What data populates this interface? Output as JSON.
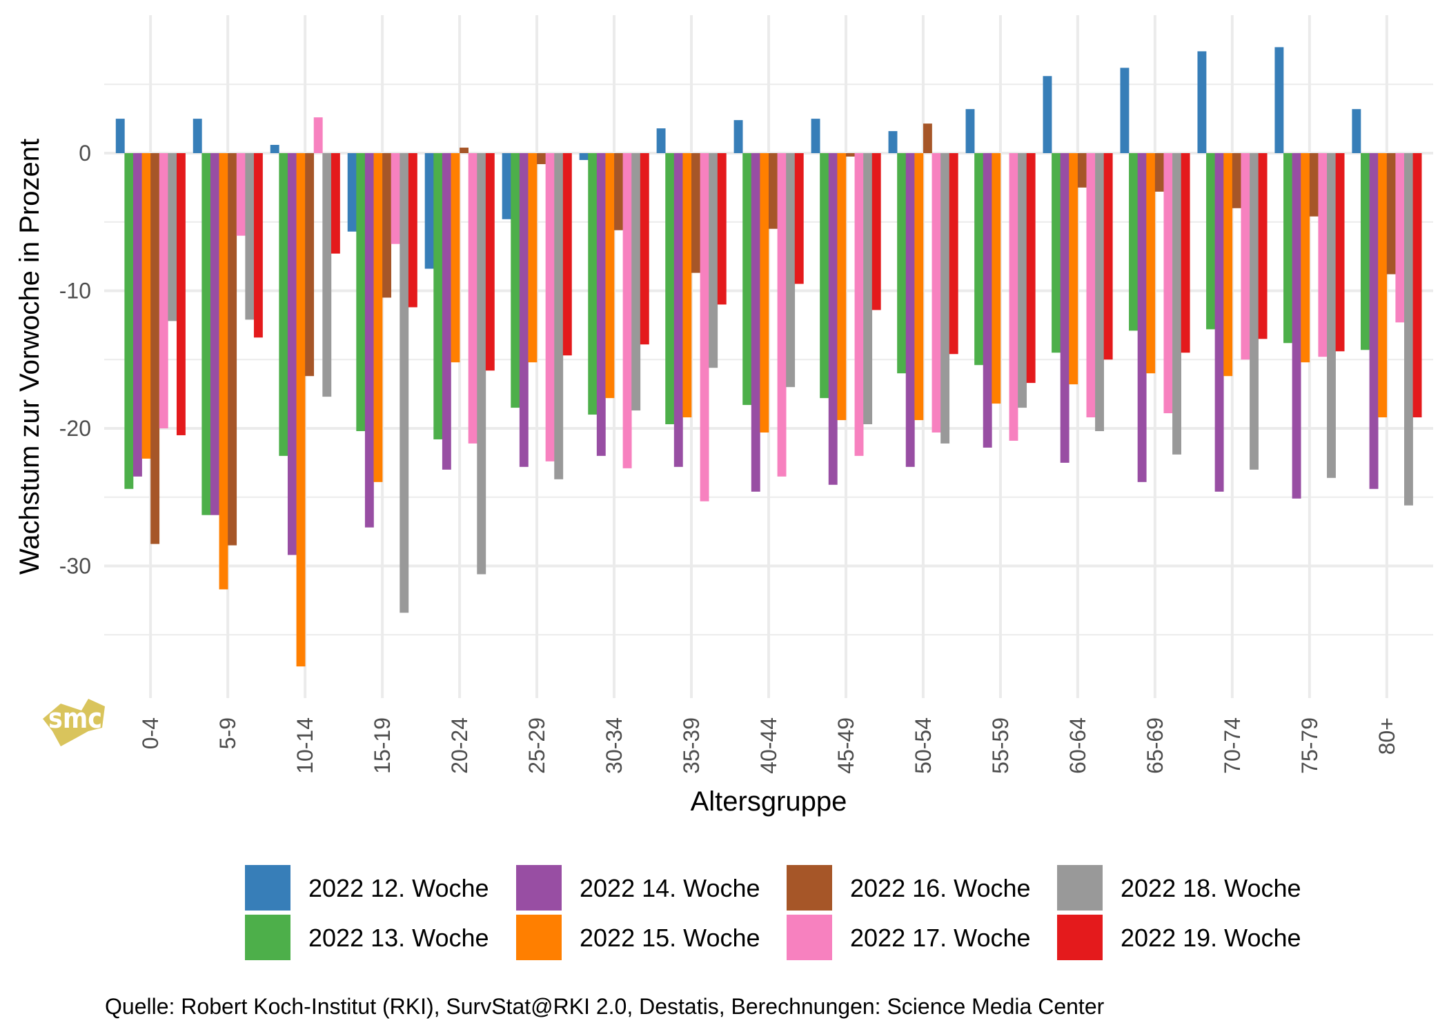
{
  "chart_data": {
    "type": "bar",
    "title": "",
    "xlabel": "Altersgruppe",
    "ylabel": "Wachstum zur Vorwoche in Prozent",
    "caption": "Quelle: Robert Koch-Institut (RKI), SurvStat@RKI 2.0, Destatis, Berechnungen: Science Media Center",
    "logo": "smc",
    "ylim": [
      -39.5,
      10
    ],
    "yticks": [
      0,
      -10,
      -20,
      -30
    ],
    "yminor": [
      5,
      -5,
      -15,
      -25,
      -35
    ],
    "grid": true,
    "legend_position": "bottom",
    "categories": [
      "0-4",
      "5-9",
      "10-14",
      "15-19",
      "20-24",
      "25-29",
      "30-34",
      "35-39",
      "40-44",
      "45-49",
      "50-54",
      "55-59",
      "60-64",
      "65-69",
      "70-74",
      "75-79",
      "80+"
    ],
    "series": [
      {
        "name": "2022 12. Woche",
        "color": "#377eb8",
        "values": [
          2.5,
          2.5,
          0.6,
          -5.7,
          -8.4,
          -4.8,
          -0.5,
          1.8,
          2.4,
          2.5,
          1.6,
          3.2,
          5.6,
          6.2,
          7.4,
          7.7,
          3.2
        ]
      },
      {
        "name": "2022 13. Woche",
        "color": "#4daf4a",
        "values": [
          -24.4,
          -26.3,
          -22.0,
          -20.2,
          -20.8,
          -18.5,
          -19.0,
          -19.7,
          -18.3,
          -17.8,
          -16.0,
          -15.4,
          -14.5,
          -12.9,
          -12.8,
          -13.8,
          -14.3
        ]
      },
      {
        "name": "2022 14. Woche",
        "color": "#984ea3",
        "values": [
          -23.5,
          -26.3,
          -29.2,
          -27.2,
          -23.0,
          -22.8,
          -22.0,
          -22.8,
          -24.6,
          -24.1,
          -22.8,
          -21.4,
          -22.5,
          -23.9,
          -24.6,
          -25.1,
          -24.4
        ]
      },
      {
        "name": "2022 15. Woche",
        "color": "#ff7f00",
        "values": [
          -22.2,
          -31.7,
          -37.3,
          -23.9,
          -15.2,
          -15.2,
          -17.8,
          -19.2,
          -20.3,
          -19.4,
          -19.4,
          -18.2,
          -16.8,
          -16.0,
          -16.2,
          -15.2,
          -19.2
        ]
      },
      {
        "name": "2022 16. Woche",
        "color": "#a65628",
        "values": [
          -28.4,
          -28.5,
          -16.2,
          -10.5,
          0.4,
          -0.8,
          -5.6,
          -8.7,
          -5.5,
          -0.25,
          2.15,
          0.0,
          -2.5,
          -2.8,
          -4.0,
          -4.6,
          -8.8
        ]
      },
      {
        "name": "2022 17. Woche",
        "color": "#f781bf",
        "values": [
          -20.0,
          -6.0,
          2.6,
          -6.6,
          -21.1,
          -22.4,
          -22.9,
          -25.3,
          -23.5,
          -22.0,
          -20.3,
          -20.9,
          -19.2,
          -18.9,
          -15.0,
          -14.8,
          -12.3
        ]
      },
      {
        "name": "2022 18. Woche",
        "color": "#999999",
        "values": [
          -12.2,
          -12.1,
          -17.7,
          -33.4,
          -30.6,
          -23.7,
          -18.7,
          -15.6,
          -17.0,
          -19.7,
          -21.1,
          -18.5,
          -20.2,
          -21.9,
          -23.0,
          -23.6,
          -25.6
        ]
      },
      {
        "name": "2022 19. Woche",
        "color": "#e41a1c",
        "values": [
          -20.5,
          -13.4,
          -7.3,
          -11.2,
          -15.8,
          -14.7,
          -13.9,
          -11.0,
          -9.5,
          -11.4,
          -14.6,
          -16.7,
          -15.0,
          -14.5,
          -13.5,
          -14.4,
          -19.2
        ]
      }
    ]
  },
  "colors": {
    "grid": "#ebebeb",
    "logo": "#d9c45c"
  }
}
